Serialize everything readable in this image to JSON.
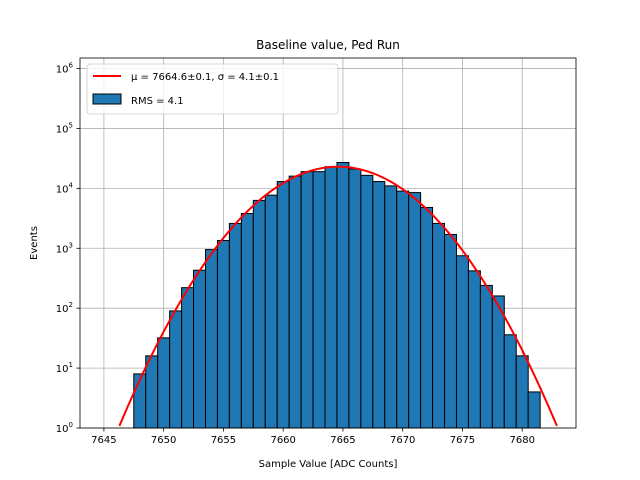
{
  "chart_data": {
    "type": "bar",
    "title": "Baseline value, Ped Run",
    "xlabel": "Sample Value [ADC Counts]",
    "ylabel": "Events",
    "yscale": "log",
    "xlim": [
      7643,
      7684.5
    ],
    "ylim": [
      1,
      1500000
    ],
    "grid": true,
    "legend_position": "top-left",
    "bin_width": 1,
    "bins": {
      "left_edges": [
        7647.5,
        7648.5,
        7649.5,
        7650.5,
        7651.5,
        7652.5,
        7653.5,
        7654.5,
        7655.5,
        7656.5,
        7657.5,
        7658.5,
        7659.5,
        7660.5,
        7661.5,
        7662.5,
        7663.5,
        7664.5,
        7665.5,
        7666.5,
        7667.5,
        7668.5,
        7669.5,
        7670.5,
        7671.5,
        7672.5,
        7673.5,
        7674.5,
        7675.5,
        7676.5,
        7677.5,
        7678.5,
        7679.5,
        7680.5
      ],
      "counts": [
        8,
        16,
        32,
        90,
        220,
        430,
        950,
        1350,
        2600,
        3800,
        6300,
        7700,
        13000,
        16000,
        19000,
        19000,
        23000,
        27000,
        21000,
        16500,
        13000,
        11000,
        9000,
        8500,
        4800,
        2600,
        1700,
        750,
        420,
        240,
        160,
        36,
        16,
        4
      ]
    },
    "fit": {
      "mu": 7664.6,
      "sigma": 4.1,
      "amplitude": 23000
    },
    "series": [
      {
        "name": "$\\mu = 7664.6 \\pm 0.1$, $\\sigma = 4.1 \\pm 0.1$",
        "label_display": "μ = 7664.6±0.1, σ = 4.1±0.1",
        "kind": "line",
        "color": "#ff0000"
      },
      {
        "name": "RMS = 4.1",
        "label_display": "RMS = 4.1",
        "kind": "histogram",
        "color": "#1f77b4"
      }
    ],
    "x_ticks": [
      7645,
      7650,
      7655,
      7660,
      7665,
      7670,
      7675,
      7680
    ],
    "y_ticks": [
      1,
      10,
      100,
      1000,
      10000,
      100000,
      1000000
    ]
  }
}
